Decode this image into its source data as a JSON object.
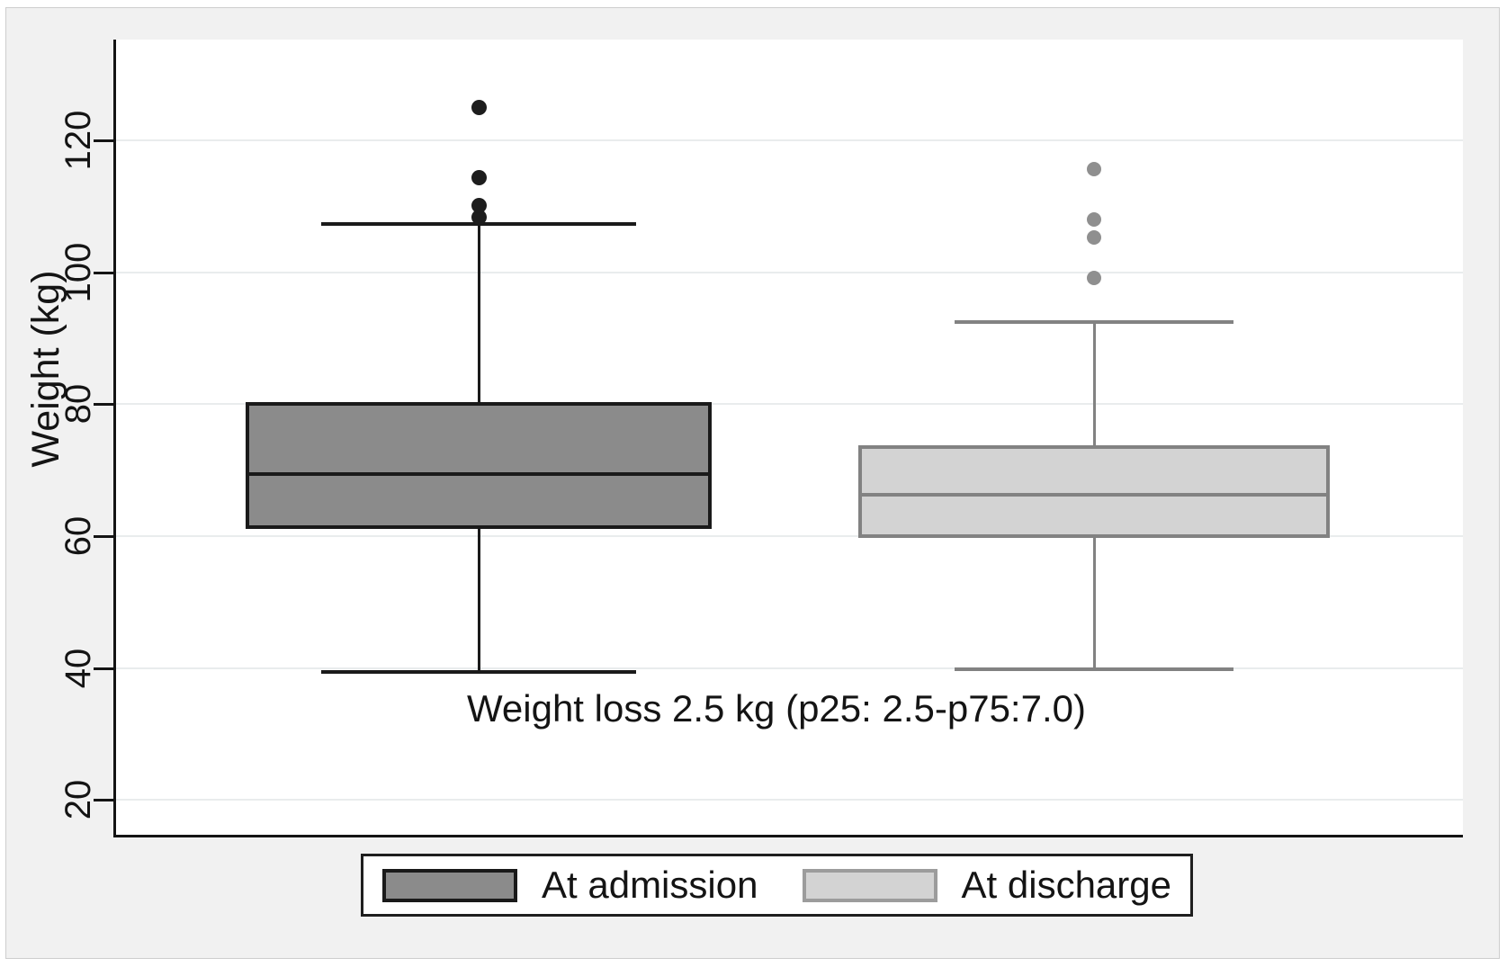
{
  "figure": {
    "background": "#f1f1f1",
    "plot_background": "#ffffff"
  },
  "chart_data": {
    "type": "box",
    "title": "",
    "xlabel": "",
    "ylabel": "Weight (kg)",
    "ylim": [
      14.7,
      135.3
    ],
    "yticks": [
      20,
      40,
      60,
      80,
      100,
      120
    ],
    "grid": true,
    "legend_position": "bottom",
    "annotation": "Weight loss 2.5 kg (p25: 2.5-p75:7.0)",
    "series": [
      {
        "name": "At admission",
        "whisker_low": 39.4,
        "q1": 61.4,
        "median": 69.4,
        "q3": 80.0,
        "whisker_high": 107.3,
        "outliers": [
          108.3,
          110.1,
          114.3,
          125.0
        ],
        "fill": "#8b8b8b",
        "stroke": "#1a1a1a",
        "outlier_color": "#1d1d1d"
      },
      {
        "name": "At discharge",
        "whisker_low": 39.8,
        "q1": 60.0,
        "median": 66.3,
        "q3": 73.5,
        "whisker_high": 92.4,
        "outliers": [
          99.1,
          105.3,
          108.0,
          115.6
        ],
        "fill": "#d3d3d3",
        "stroke": "#828282",
        "outlier_color": "#8f8f8f"
      }
    ]
  },
  "legend": {
    "items": [
      {
        "label": "At admission",
        "fill": "#8b8b8b",
        "border": "#1a1a1a"
      },
      {
        "label": "At discharge",
        "fill": "#d3d3d3",
        "border": "#9c9c9c"
      }
    ]
  }
}
